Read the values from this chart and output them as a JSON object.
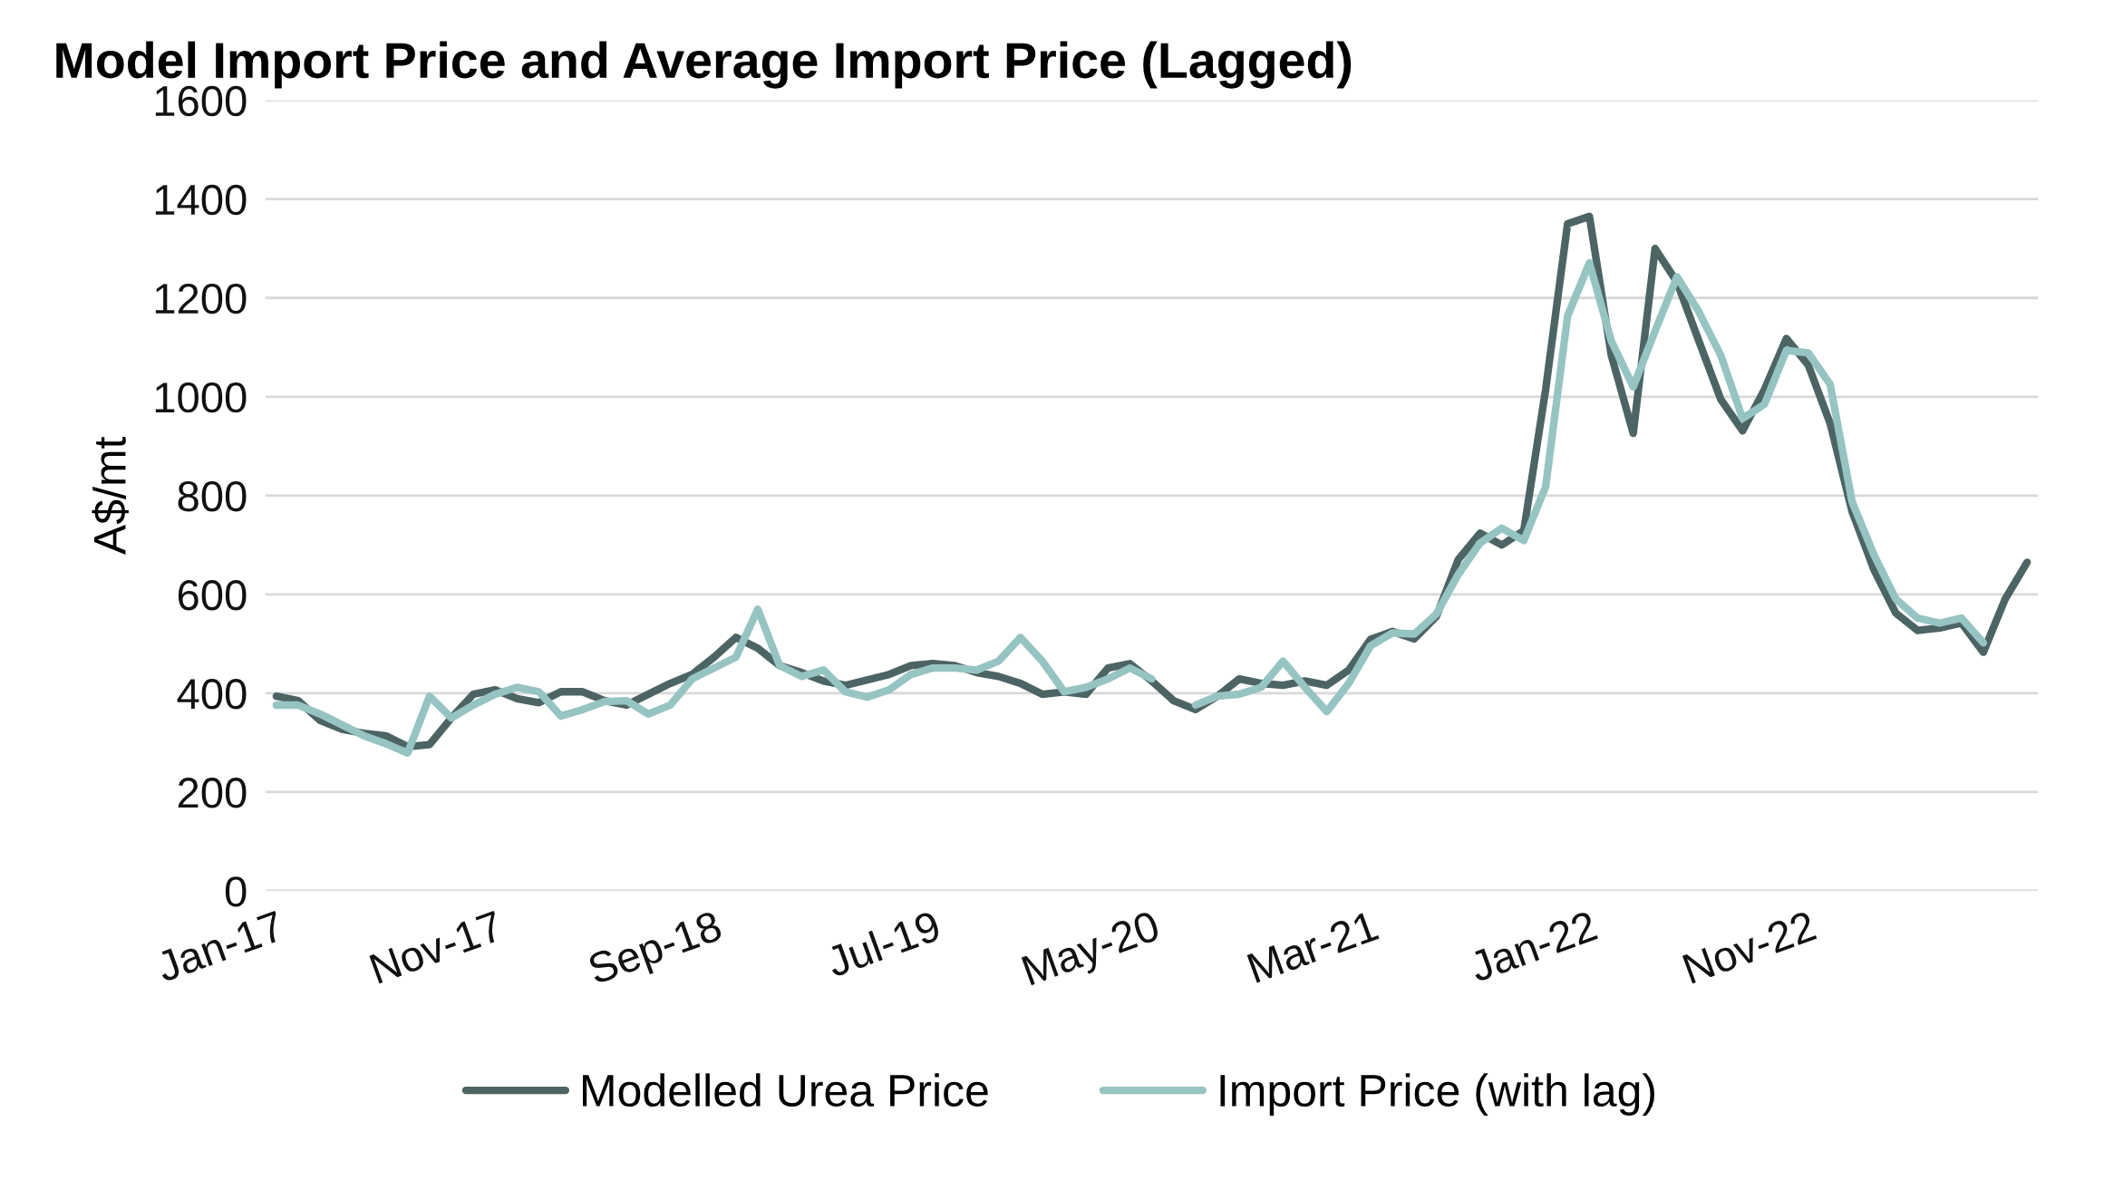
{
  "chart_data": {
    "type": "line",
    "title": "Model Import Price and Average Import Price (Lagged)",
    "ylabel": "A$/mt",
    "categories": [
      "Jan-17",
      null,
      null,
      null,
      null,
      null,
      null,
      null,
      null,
      null,
      "Nov-17",
      null,
      null,
      null,
      null,
      null,
      null,
      null,
      null,
      null,
      "Sep-18",
      null,
      null,
      null,
      null,
      null,
      null,
      null,
      null,
      null,
      "Jul-19",
      null,
      null,
      null,
      null,
      null,
      null,
      null,
      null,
      null,
      "May-20",
      null,
      null,
      null,
      null,
      null,
      null,
      null,
      null,
      null,
      "Mar-21",
      null,
      null,
      null,
      null,
      null,
      null,
      null,
      null,
      null,
      "Jan-22",
      null,
      null,
      null,
      null,
      null,
      null,
      null,
      null,
      null,
      "Nov-22",
      null,
      null,
      null,
      null,
      null,
      null,
      null,
      null,
      null,
      null
    ],
    "series": [
      {
        "name": "Modelled Urea Price",
        "color": "#4d6465",
        "values": [
          394,
          385,
          345,
          327,
          319,
          314,
          292,
          296,
          350,
          398,
          407,
          389,
          381,
          403,
          403,
          385,
          376,
          398,
          420,
          438,
          473,
          513,
          491,
          456,
          442,
          425,
          416,
          427,
          438,
          456,
          460,
          456,
          442,
          434,
          420,
          398,
          403,
          398,
          451,
          460,
          425,
          385,
          367,
          394,
          429,
          420,
          416,
          425,
          416,
          447,
          509,
          525,
          510,
          555,
          670,
          724,
          700,
          729,
          1015,
          1350,
          1365,
          1084,
          926,
          1300,
          1232,
          1113,
          995,
          931,
          1015,
          1118,
          1064,
          946,
          768,
          650,
          562,
          527,
          532,
          542,
          483,
          591,
          665
        ]
      },
      {
        "name": "Import Price (with lag)",
        "color": "#96c4c2",
        "values": [
          376,
          376,
          358,
          336,
          314,
          298,
          279,
          394,
          350,
          376,
          398,
          412,
          403,
          354,
          367,
          383,
          385,
          358,
          376,
          429,
          451,
          473,
          570,
          456,
          434,
          447,
          403,
          392,
          407,
          438,
          451,
          451,
          447,
          465,
          513,
          465,
          403,
          412,
          429,
          451,
          429,
          null,
          376,
          394,
          398,
          412,
          465,
          412,
          363,
          420,
          496,
          522,
          520,
          560,
          640,
          704,
          734,
          709,
          818,
          1163,
          1271,
          1113,
          1020,
          1133,
          1243,
          1172,
          1084,
          956,
          985,
          1094,
          1089,
          1025,
          788,
          680,
          591,
          552,
          542,
          552,
          502,
          null,
          null
        ]
      }
    ],
    "ylim": [
      0,
      1600
    ],
    "yticks": [
      0,
      200,
      400,
      600,
      800,
      1000,
      1200,
      1400,
      1600
    ],
    "grid": "y",
    "legend": "bottom",
    "line_style": "solid",
    "marker": "none"
  }
}
